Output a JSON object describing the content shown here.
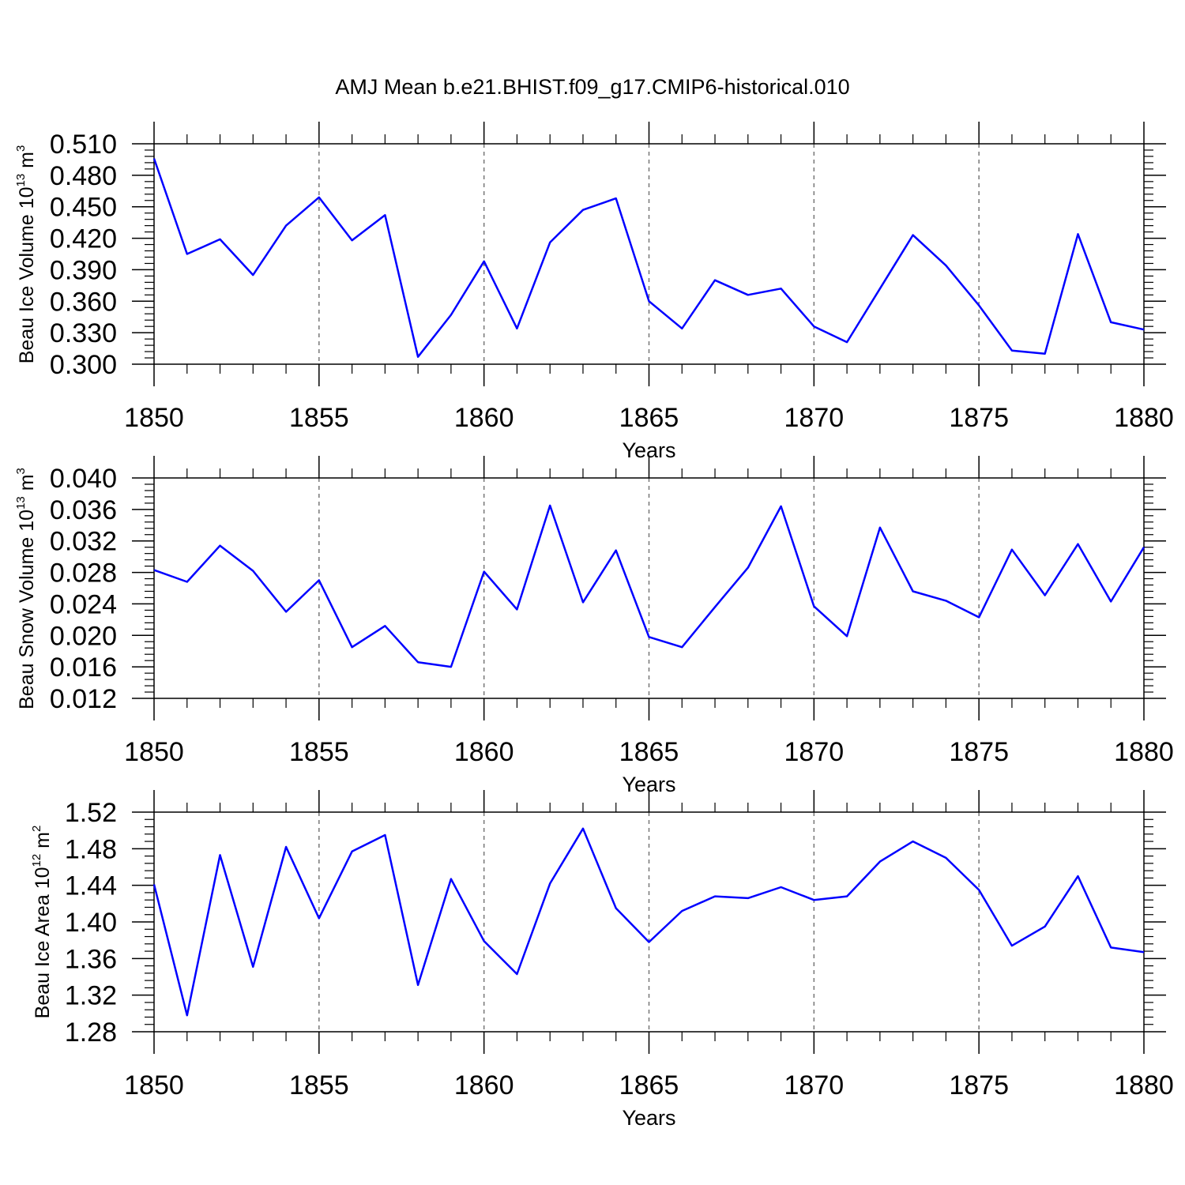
{
  "title": "AMJ Mean b.e21.BHIST.f09_g17.CMIP6-historical.010",
  "line_color": "#0000ff",
  "chart_data": [
    {
      "type": "line",
      "xlabel": "Years",
      "ylabel": {
        "prefix": "Beau Ice Volume 10",
        "exp": "13",
        "unit": " m",
        "unit_exp": "3"
      },
      "xlim": [
        1850,
        1880
      ],
      "ylim": [
        0.3,
        0.51
      ],
      "xticks": [
        1850,
        1855,
        1860,
        1865,
        1870,
        1875,
        1880
      ],
      "yticks": [
        "0.300",
        "0.330",
        "0.360",
        "0.390",
        "0.420",
        "0.450",
        "0.480",
        "0.510"
      ],
      "x": [
        1850,
        1851,
        1852,
        1853,
        1854,
        1855,
        1856,
        1857,
        1858,
        1859,
        1860,
        1861,
        1862,
        1863,
        1864,
        1865,
        1866,
        1867,
        1868,
        1869,
        1870,
        1871,
        1872,
        1873,
        1874,
        1875,
        1876,
        1877,
        1878,
        1879,
        1880
      ],
      "values": [
        0.496,
        0.405,
        0.419,
        0.385,
        0.432,
        0.459,
        0.418,
        0.442,
        0.307,
        0.347,
        0.398,
        0.334,
        0.416,
        0.447,
        0.458,
        0.36,
        0.334,
        0.38,
        0.366,
        0.372,
        0.336,
        0.321,
        0.372,
        0.423,
        0.394,
        0.356,
        0.313,
        0.31,
        0.424,
        0.34,
        0.333
      ]
    },
    {
      "type": "line",
      "xlabel": "Years",
      "ylabel": {
        "prefix": "Beau Snow Volume 10",
        "exp": "13",
        "unit": " m",
        "unit_exp": "3"
      },
      "xlim": [
        1850,
        1880
      ],
      "ylim": [
        0.012,
        0.04
      ],
      "xticks": [
        1850,
        1855,
        1860,
        1865,
        1870,
        1875,
        1880
      ],
      "yticks": [
        "0.012",
        "0.016",
        "0.020",
        "0.024",
        "0.028",
        "0.032",
        "0.036",
        "0.040"
      ],
      "x": [
        1850,
        1851,
        1852,
        1853,
        1854,
        1855,
        1856,
        1857,
        1858,
        1859,
        1860,
        1861,
        1862,
        1863,
        1864,
        1865,
        1866,
        1867,
        1868,
        1869,
        1870,
        1871,
        1872,
        1873,
        1874,
        1875,
        1876,
        1877,
        1878,
        1879,
        1880
      ],
      "values": [
        0.0283,
        0.0268,
        0.0314,
        0.0282,
        0.023,
        0.027,
        0.0185,
        0.0212,
        0.0166,
        0.016,
        0.0281,
        0.0233,
        0.0365,
        0.0242,
        0.0308,
        0.0198,
        0.0185,
        0.0236,
        0.0286,
        0.0364,
        0.0237,
        0.0199,
        0.0337,
        0.0256,
        0.0244,
        0.0223,
        0.0309,
        0.0251,
        0.0316,
        0.0243,
        0.0312
      ]
    },
    {
      "type": "line",
      "xlabel": "Years",
      "ylabel": {
        "prefix": "Beau Ice Area 10",
        "exp": "12",
        "unit": " m",
        "unit_exp": "2"
      },
      "xlim": [
        1850,
        1880
      ],
      "ylim": [
        1.28,
        1.52
      ],
      "xticks": [
        1850,
        1855,
        1860,
        1865,
        1870,
        1875,
        1880
      ],
      "yticks": [
        "1.28",
        "1.32",
        "1.36",
        "1.40",
        "1.44",
        "1.48",
        "1.52"
      ],
      "x": [
        1850,
        1851,
        1852,
        1853,
        1854,
        1855,
        1856,
        1857,
        1858,
        1859,
        1860,
        1861,
        1862,
        1863,
        1864,
        1865,
        1866,
        1867,
        1868,
        1869,
        1870,
        1871,
        1872,
        1873,
        1874,
        1875,
        1876,
        1877,
        1878,
        1879,
        1880
      ],
      "values": [
        1.441,
        1.298,
        1.473,
        1.351,
        1.482,
        1.404,
        1.477,
        1.495,
        1.331,
        1.447,
        1.379,
        1.343,
        1.442,
        1.502,
        1.415,
        1.378,
        1.412,
        1.428,
        1.426,
        1.438,
        1.424,
        1.428,
        1.466,
        1.488,
        1.47,
        1.435,
        1.374,
        1.395,
        1.45,
        1.372,
        1.367
      ]
    }
  ]
}
